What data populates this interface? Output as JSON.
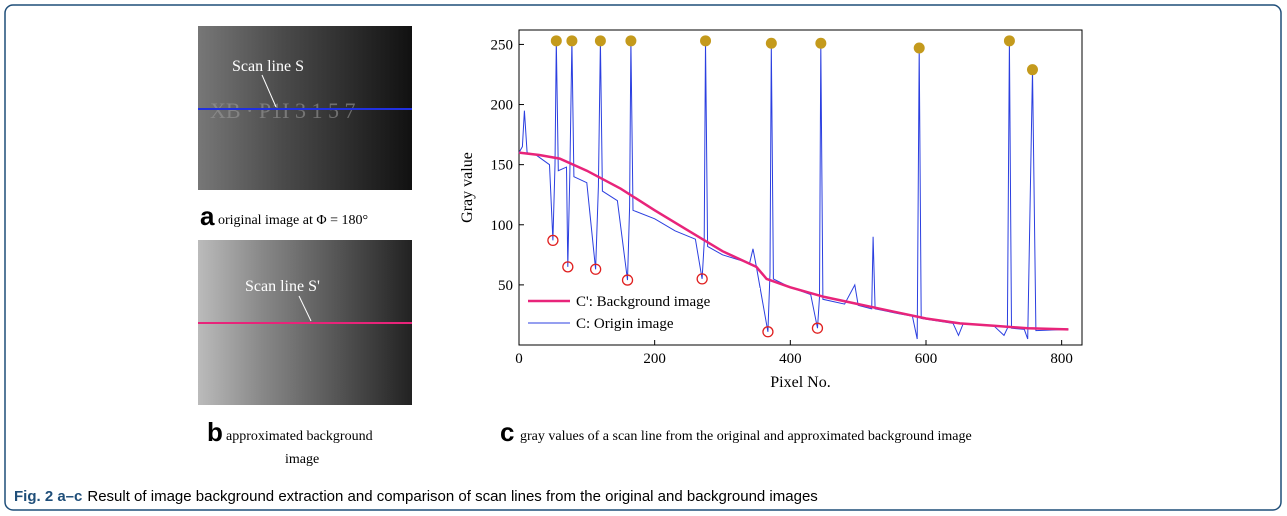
{
  "panel_a": {
    "letter": "a",
    "label": "original image at Φ = 180°",
    "scan_label": "Scan line S",
    "watermark": "XB · P1I 3 1 5 7"
  },
  "panel_b": {
    "letter": "b",
    "label_line1": "approximated background",
    "label_line2": "image",
    "scan_label": "Scan line S'"
  },
  "panel_c": {
    "letter": "c",
    "label": "gray values of a scan line from the original and approximated background image"
  },
  "caption": {
    "figure": "Fig. 2 a–c",
    "text": "Result of image background extraction and comparison of scan lines from the original and background images"
  },
  "chart_data": {
    "type": "line",
    "xlabel": "Pixel No.",
    "ylabel": "Gray value",
    "xlim": [
      0,
      830
    ],
    "xticks": [
      0,
      200,
      400,
      600,
      800
    ],
    "ylim": [
      0,
      262
    ],
    "yticks": [
      50,
      100,
      150,
      200,
      250
    ],
    "legend": "lower left",
    "series": [
      {
        "name": "C': Background image",
        "color": "#e8247a",
        "x": [
          0,
          30,
          60,
          100,
          150,
          200,
          250,
          300,
          350,
          365,
          400,
          450,
          500,
          550,
          600,
          650,
          700,
          750,
          810
        ],
        "values": [
          160,
          158,
          155,
          145,
          130,
          112,
          95,
          78,
          65,
          55,
          48,
          40,
          34,
          28,
          22,
          18,
          16,
          14,
          13
        ]
      },
      {
        "name": "C: Origin image",
        "color": "#2b3fe0",
        "x": [
          0,
          5,
          8,
          12,
          25,
          45,
          50,
          53,
          55,
          58,
          70,
          72,
          75,
          78,
          81,
          100,
          113,
          117,
          120,
          123,
          145,
          160,
          163,
          165,
          168,
          200,
          230,
          260,
          270,
          273,
          275,
          278,
          300,
          340,
          345,
          350,
          367,
          370,
          372,
          375,
          400,
          430,
          440,
          443,
          445,
          448,
          480,
          495,
          500,
          520,
          522,
          525,
          560,
          580,
          587,
          590,
          593,
          640,
          648,
          655,
          700,
          715,
          720,
          723,
          726,
          745,
          750,
          757,
          762,
          810
        ],
        "values": [
          160,
          165,
          195,
          160,
          158,
          150,
          87,
          150,
          253,
          145,
          148,
          65,
          145,
          253,
          140,
          135,
          63,
          132,
          253,
          128,
          120,
          54,
          115,
          253,
          112,
          105,
          95,
          88,
          55,
          85,
          253,
          82,
          75,
          68,
          80,
          65,
          11,
          60,
          251,
          55,
          48,
          42,
          14,
          40,
          251,
          38,
          34,
          50,
          33,
          30,
          90,
          30,
          26,
          24,
          5,
          247,
          22,
          18,
          8,
          18,
          16,
          8,
          14,
          253,
          14,
          13,
          5,
          229,
          12,
          13
        ]
      }
    ],
    "peaks": {
      "color": "#c49a1c",
      "x": [
        55,
        78,
        120,
        165,
        275,
        372,
        445,
        590,
        723,
        757
      ],
      "values": [
        253,
        253,
        253,
        253,
        253,
        251,
        251,
        247,
        253,
        229
      ]
    },
    "valleys": {
      "color": "#e02020",
      "x": [
        50,
        72,
        113,
        160,
        270,
        367,
        440
      ],
      "values": [
        87,
        65,
        63,
        54,
        55,
        11,
        14
      ]
    }
  }
}
